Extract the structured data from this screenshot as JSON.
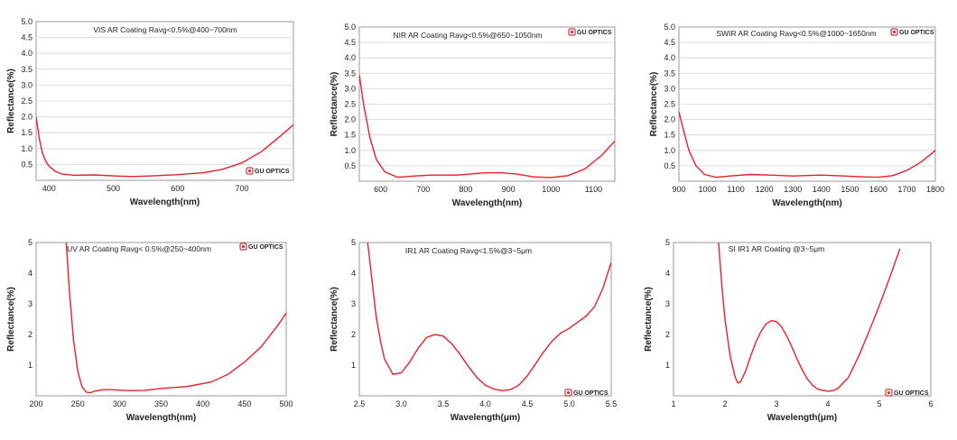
{
  "brand": {
    "text": "GU OPTICS",
    "color": "#c8363d"
  },
  "curve_color": "#e8202a",
  "chart_data": [
    {
      "type": "line",
      "title": "VIS AR Coating Ravg<0.5%@400~700nm",
      "xlabel": "Wavelength(nm)",
      "ylabel": "Reflectance(%)",
      "xlim": [
        380,
        780
      ],
      "ylim": [
        0,
        5
      ],
      "xticks": [
        400,
        500,
        600,
        700
      ],
      "xtick_labels": [
        "400",
        "500",
        "600",
        "700"
      ],
      "yticks": [
        0.5,
        1.0,
        1.5,
        2.0,
        2.5,
        3.0,
        3.5,
        4.0,
        4.5,
        5.0
      ],
      "ytick_labels": [
        "0.5",
        "1.0",
        "1.5",
        "2.0",
        "2.5",
        "3.0",
        "3.5",
        "4.0",
        "4.5",
        "5.0"
      ],
      "grid": "horizontal",
      "x": [
        380,
        385,
        390,
        395,
        400,
        410,
        420,
        440,
        470,
        500,
        530,
        560,
        600,
        640,
        670,
        700,
        730,
        760,
        780
      ],
      "y": [
        2.0,
        1.3,
        0.85,
        0.6,
        0.45,
        0.28,
        0.2,
        0.16,
        0.17,
        0.14,
        0.12,
        0.14,
        0.18,
        0.24,
        0.35,
        0.55,
        0.9,
        1.4,
        1.75
      ]
    },
    {
      "type": "line",
      "title": "NIR AR Coating Ravg<0.5%@650~1050nm",
      "xlabel": "Wavelength(nm)",
      "ylabel": "Reflectance(%)",
      "xlim": [
        550,
        1150
      ],
      "ylim": [
        0,
        5
      ],
      "xticks": [
        600,
        700,
        800,
        900,
        1000,
        1100
      ],
      "xtick_labels": [
        "600",
        "700",
        "800",
        "900",
        "1000",
        "1100"
      ],
      "yticks": [
        0.5,
        1.0,
        1.5,
        2.0,
        2.5,
        3.0,
        3.5,
        4.0,
        4.5,
        5.0
      ],
      "ytick_labels": [
        "0.5",
        "1.0",
        "1.5",
        "2.0",
        "2.5",
        "3.0",
        "3.5",
        "4.0",
        "4.5",
        "5.0"
      ],
      "grid": "horizontal",
      "x": [
        550,
        560,
        575,
        590,
        610,
        640,
        680,
        720,
        780,
        840,
        880,
        920,
        960,
        1000,
        1040,
        1080,
        1120,
        1150
      ],
      "y": [
        3.45,
        2.5,
        1.4,
        0.7,
        0.3,
        0.13,
        0.17,
        0.2,
        0.2,
        0.27,
        0.28,
        0.23,
        0.14,
        0.12,
        0.18,
        0.4,
        0.85,
        1.3
      ]
    },
    {
      "type": "line",
      "title": "SWIR AR Coating Ravg<0.5%@1000~1650nm",
      "xlabel": "Wavelength(nm)",
      "ylabel": "Reflectance(%)",
      "xlim": [
        900,
        1800
      ],
      "ylim": [
        0,
        5
      ],
      "xticks": [
        900,
        1000,
        1100,
        1200,
        1300,
        1400,
        1500,
        1600,
        1700,
        1800
      ],
      "xtick_labels": [
        "900",
        "1000",
        "1100",
        "1200",
        "1300",
        "1400",
        "1500",
        "1600",
        "1700",
        "1800"
      ],
      "yticks": [
        0.5,
        1.0,
        1.5,
        2.0,
        2.5,
        3.0,
        3.5,
        4.0,
        4.5,
        5.0
      ],
      "ytick_labels": [
        "0.5",
        "1.0",
        "1.5",
        "2.0",
        "2.5",
        "3.0",
        "3.5",
        "4.0",
        "4.5",
        "5.0"
      ],
      "grid": "horizontal",
      "x": [
        900,
        915,
        935,
        960,
        990,
        1030,
        1080,
        1150,
        1220,
        1300,
        1400,
        1480,
        1550,
        1600,
        1650,
        1700,
        1750,
        1800
      ],
      "y": [
        2.25,
        1.7,
        1.0,
        0.5,
        0.22,
        0.13,
        0.17,
        0.22,
        0.2,
        0.17,
        0.2,
        0.17,
        0.14,
        0.13,
        0.18,
        0.35,
        0.62,
        1.0
      ]
    },
    {
      "type": "line",
      "title": "UV AR Coating Ravg< 0.5%@250~400nm",
      "xlabel": "Wavelength(nm)",
      "ylabel": "Reflectance(%)",
      "xlim": [
        200,
        500
      ],
      "ylim": [
        0,
        5
      ],
      "xticks": [
        200,
        250,
        300,
        350,
        400,
        450,
        500
      ],
      "xtick_labels": [
        "200",
        "250",
        "300",
        "350",
        "400",
        "450",
        "500"
      ],
      "yticks": [
        1,
        2,
        3,
        4,
        5
      ],
      "ytick_labels": [
        "1",
        "2",
        "3",
        "4",
        "5"
      ],
      "grid": "none",
      "x": [
        236,
        240,
        245,
        250,
        255,
        260,
        265,
        270,
        280,
        290,
        310,
        330,
        350,
        380,
        410,
        430,
        450,
        470,
        490,
        500
      ],
      "y": [
        5.1,
        3.4,
        1.8,
        0.8,
        0.3,
        0.12,
        0.1,
        0.15,
        0.2,
        0.2,
        0.17,
        0.18,
        0.24,
        0.3,
        0.45,
        0.7,
        1.1,
        1.6,
        2.3,
        2.7
      ]
    },
    {
      "type": "line",
      "title": "IR1 AR Coating Ravg<1.5%@3~5μm",
      "xlabel": "Wavelength(μm)",
      "ylabel": "Reflectance(%)",
      "xlim": [
        2.5,
        5.5
      ],
      "ylim": [
        0,
        5
      ],
      "xticks": [
        2.5,
        3.0,
        3.5,
        4.0,
        4.5,
        5.0,
        5.5
      ],
      "xtick_labels": [
        "2.5",
        "3.0",
        "3.5",
        "4.0",
        "4.5",
        "5.0",
        "5.5"
      ],
      "yticks": [
        1,
        2,
        3,
        4,
        5
      ],
      "ytick_labels": [
        "1",
        "2",
        "3",
        "4",
        "5"
      ],
      "grid": "none",
      "x": [
        2.6,
        2.65,
        2.7,
        2.75,
        2.8,
        2.9,
        3.0,
        3.1,
        3.2,
        3.3,
        3.4,
        3.5,
        3.6,
        3.7,
        3.8,
        3.9,
        4.0,
        4.1,
        4.2,
        4.3,
        4.4,
        4.5,
        4.6,
        4.7,
        4.8,
        4.9,
        5.0,
        5.1,
        5.2,
        5.3,
        5.4,
        5.5
      ],
      "y": [
        5.0,
        3.8,
        2.6,
        1.8,
        1.2,
        0.7,
        0.75,
        1.1,
        1.55,
        1.9,
        2.0,
        1.95,
        1.7,
        1.35,
        0.95,
        0.6,
        0.35,
        0.22,
        0.17,
        0.2,
        0.35,
        0.65,
        1.05,
        1.45,
        1.8,
        2.05,
        2.2,
        2.4,
        2.6,
        2.9,
        3.5,
        4.35
      ]
    },
    {
      "type": "line",
      "title": "SI IR1 AR Coating @3~5μm",
      "xlabel": "Wavelength(μm)",
      "ylabel": "Reflectance(%)",
      "xlim": [
        1,
        6
      ],
      "ylim": [
        0,
        5
      ],
      "xticks": [
        1,
        2,
        3,
        4,
        5,
        6
      ],
      "xtick_labels": [
        "1",
        "2",
        "3",
        "4",
        "5",
        "6"
      ],
      "yticks": [
        1,
        2,
        3,
        4,
        5
      ],
      "ytick_labels": [
        "1",
        "2",
        "3",
        "4",
        "5"
      ],
      "grid": "none",
      "x": [
        1.87,
        1.95,
        2.0,
        2.1,
        2.2,
        2.25,
        2.3,
        2.4,
        2.5,
        2.6,
        2.7,
        2.8,
        2.9,
        3.0,
        3.1,
        3.2,
        3.3,
        3.4,
        3.5,
        3.6,
        3.7,
        3.8,
        3.9,
        4.0,
        4.1,
        4.2,
        4.4,
        4.6,
        4.8,
        5.0,
        5.2,
        5.4
      ],
      "y": [
        5.1,
        3.4,
        2.5,
        1.3,
        0.6,
        0.42,
        0.45,
        0.8,
        1.3,
        1.75,
        2.1,
        2.35,
        2.45,
        2.42,
        2.25,
        1.95,
        1.6,
        1.2,
        0.85,
        0.55,
        0.35,
        0.22,
        0.18,
        0.15,
        0.17,
        0.25,
        0.6,
        1.3,
        2.1,
        2.95,
        3.85,
        4.8
      ]
    }
  ]
}
